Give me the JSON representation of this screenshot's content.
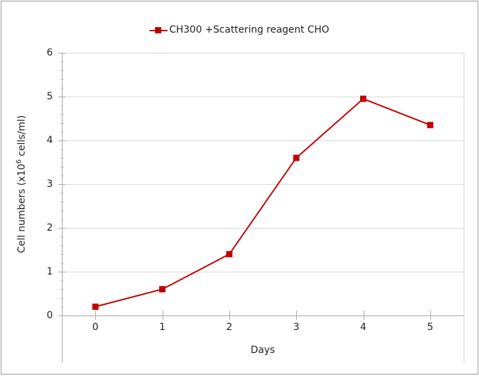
{
  "window": {
    "background": "#ffffff",
    "border_color": "#9b9b9b"
  },
  "chart_data": {
    "type": "line",
    "title": "",
    "legend_position": "top",
    "categories": [
      "0",
      "1",
      "2",
      "3",
      "4",
      "5"
    ],
    "series": [
      {
        "name": "CH300 +Scattering reagent CHO",
        "color": "#C00000",
        "marker": "square",
        "values": [
          0.2,
          0.6,
          1.4,
          3.6,
          4.95,
          4.35
        ]
      }
    ],
    "xlabel": "Days",
    "ylabel": "Cell numbers (x10⁶ cells/ml)",
    "ylabel_parts": {
      "prefix": "Cell numbers (x10",
      "superscript": "6",
      "suffix": " cells/ml)"
    },
    "ylim": [
      0,
      6
    ],
    "yticks": [
      0,
      1,
      2,
      3,
      4,
      5,
      6
    ],
    "y_minor_step": 0.2,
    "grid": "horizontal-major",
    "colors": {
      "gridline": "#d9d9d9",
      "axis_line": "#a6a6a6",
      "plot_right_border": "#d4d4d4",
      "major_tick": "#a6a6a6",
      "minor_tick": "#c8c8c8",
      "text": "#1f1f1f"
    }
  }
}
